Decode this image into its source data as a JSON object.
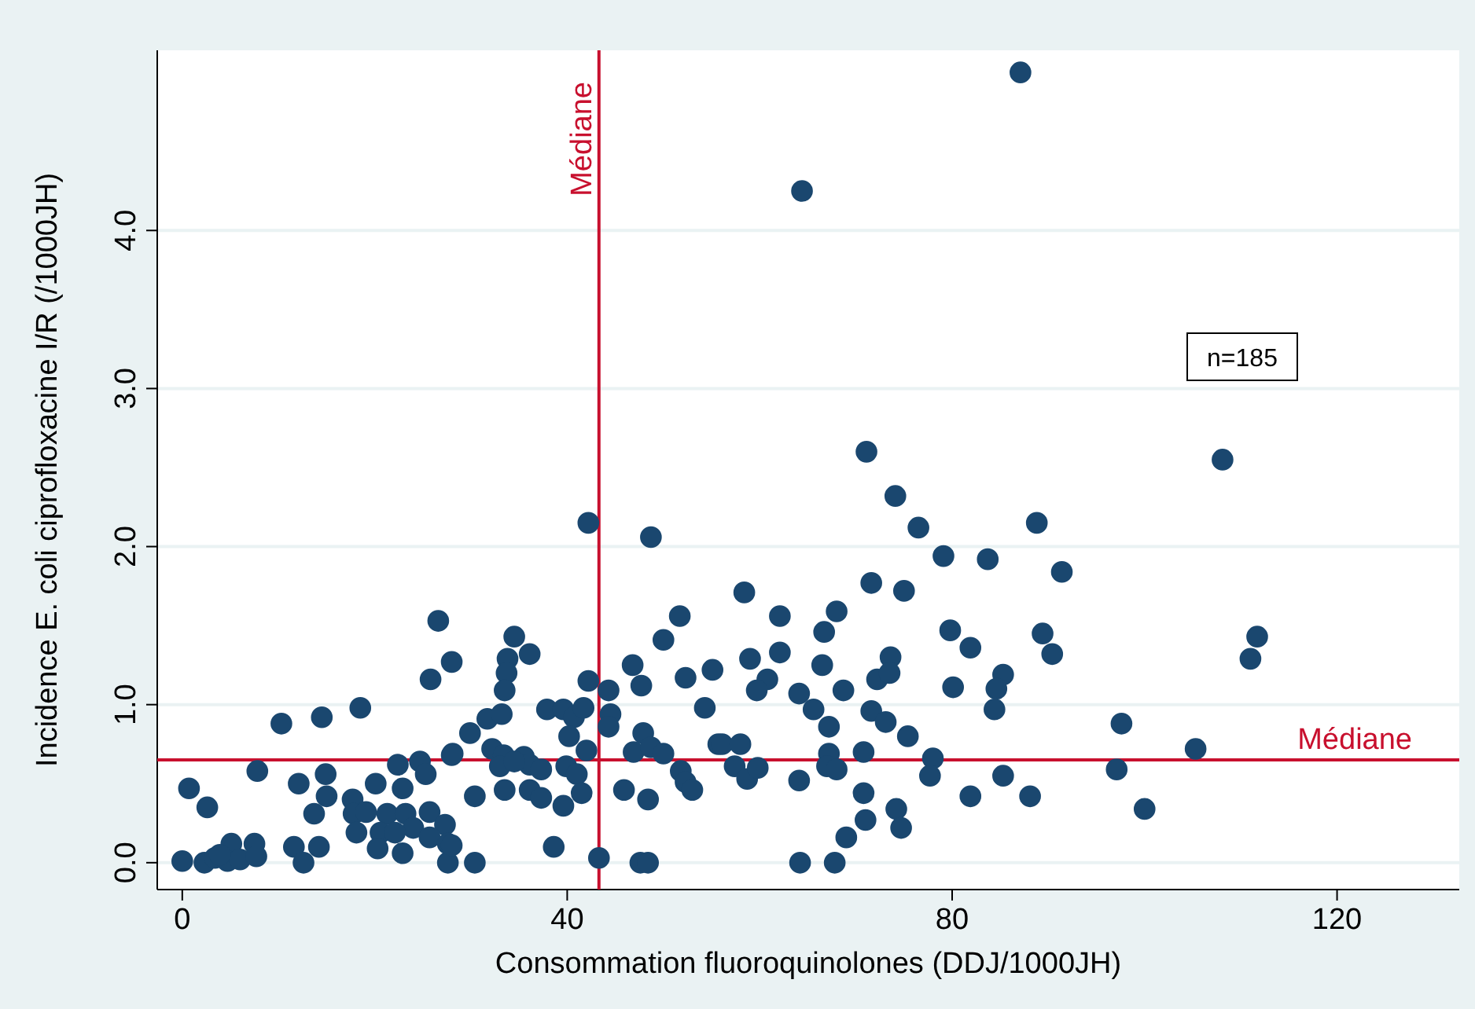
{
  "chart_data": {
    "type": "scatter",
    "xlabel": "Consommation fluoroquinolones (DDJ/1000JH)",
    "ylabel": "Incidence E. coli ciprofloxacine I/R (/1000JH)",
    "xlim": [
      -2.6,
      132.7
    ],
    "ylim": [
      -0.17,
      5.14
    ],
    "xticks": [
      0,
      40,
      80,
      120
    ],
    "yticks": [
      {
        "value": 0,
        "label": "0.0"
      },
      {
        "value": 1,
        "label": "1.0"
      },
      {
        "value": 2,
        "label": "2.0"
      },
      {
        "value": 3,
        "label": "3.0"
      },
      {
        "value": 4,
        "label": "4.0"
      }
    ],
    "grid": "y",
    "marker": "circle",
    "ref_lines": [
      {
        "axis": "x",
        "value": 43.3,
        "label": "Médiane",
        "color": "#c8102e"
      },
      {
        "axis": "y",
        "value": 0.65,
        "label": "Médiane",
        "color": "#c8102e"
      }
    ],
    "annotations": [
      "n=185"
    ],
    "series": [
      {
        "color": "#1a476f",
        "x": [
          26.6,
          28.0,
          25.8,
          18.5,
          14.5,
          10.3,
          7.8,
          0.7,
          2.6,
          12.1,
          14.9,
          15.0,
          13.7,
          17.7,
          17.8,
          19.1,
          21.3,
          20.1,
          22.9,
          22.4,
          24.7,
          25.3,
          28.0,
          23.2,
          25.7,
          24.0,
          27.3,
          18.1,
          20.6,
          22.1,
          25.7,
          20.3,
          22.9,
          27.6,
          27.6,
          11.6,
          14.2,
          12.6,
          0,
          2.3,
          3.4,
          5.1,
          7.5,
          4.7,
          6.0,
          7.7,
          3.9,
          42.2,
          48.7,
          34.5,
          33.8,
          36.1,
          33.7,
          33.5,
          51.7,
          50.0,
          46.8,
          47.7,
          52.3,
          55.1,
          42.2,
          44.3,
          54.3,
          44.5,
          44.3,
          31.7,
          33.2,
          29.9,
          37.9,
          39.6,
          40.7,
          41.7,
          40.2,
          42.0,
          32.2,
          33.4,
          35.5,
          36.1,
          33.0,
          34.5,
          37.3,
          28.1,
          39.9,
          41.0,
          46.9,
          47.9,
          48.7,
          50.0,
          51.8,
          52.3,
          53.0,
          55.7,
          30.4,
          33.5,
          36.1,
          37.3,
          39.6,
          41.5,
          45.9,
          48.4,
          28.0,
          38.6,
          30.4,
          43.3,
          47.6,
          48.4,
          71.1,
          74.1,
          76.5,
          79.1,
          71.6,
          75.0,
          58.4,
          62.1,
          68.0,
          66.7,
          79.8,
          81.9,
          59.0,
          62.1,
          66.5,
          73.6,
          60.8,
          59.7,
          64.1,
          68.7,
          72.2,
          73.5,
          80.1,
          65.6,
          71.6,
          73.1,
          67.2,
          75.4,
          56.1,
          58.0,
          57.4,
          58.7,
          59.8,
          67.2,
          67.0,
          68.0,
          70.8,
          64.1,
          78.0,
          77.7,
          81.9,
          70.8,
          71.0,
          69.0,
          74.2,
          74.7,
          64.2,
          67.8,
          108.1,
          88.8,
          83.7,
          91.4,
          89.4,
          90.4,
          111.7,
          111.0,
          85.3,
          84.6,
          84.4,
          97.6,
          105.3,
          85.3,
          97.1,
          88.1,
          100.0,
          87.1,
          64.4
        ],
        "values": [
          1.53,
          1.27,
          1.16,
          0.98,
          0.92,
          0.88,
          0.58,
          0.47,
          0.35,
          0.5,
          0.56,
          0.42,
          0.31,
          0.4,
          0.31,
          0.32,
          0.31,
          0.5,
          0.47,
          0.62,
          0.64,
          0.56,
          0.68,
          0.31,
          0.32,
          0.22,
          0.24,
          0.19,
          0.19,
          0.19,
          0.16,
          0.09,
          0.06,
          0.12,
          0.0,
          0.1,
          0.1,
          0.0,
          0.01,
          0.0,
          0.03,
          0.12,
          0.12,
          0.01,
          0.02,
          0.04,
          0.05,
          2.15,
          2.06,
          1.43,
          1.29,
          1.32,
          1.2,
          1.09,
          1.56,
          1.41,
          1.25,
          1.12,
          1.17,
          1.22,
          1.15,
          1.09,
          0.98,
          0.94,
          0.86,
          0.91,
          0.94,
          0.82,
          0.97,
          0.97,
          0.92,
          0.98,
          0.8,
          0.71,
          0.72,
          0.68,
          0.67,
          0.62,
          0.61,
          0.64,
          0.59,
          0.69,
          0.61,
          0.56,
          0.7,
          0.82,
          0.73,
          0.69,
          0.58,
          0.51,
          0.46,
          0.75,
          0.42,
          0.46,
          0.46,
          0.41,
          0.36,
          0.44,
          0.46,
          0.4,
          0.11,
          0.1,
          0.0,
          0.03,
          0.0,
          0.0,
          2.6,
          2.32,
          2.12,
          1.94,
          1.77,
          1.72,
          1.71,
          1.56,
          1.59,
          1.46,
          1.47,
          1.36,
          1.29,
          1.33,
          1.25,
          1.3,
          1.16,
          1.09,
          1.07,
          1.09,
          1.16,
          1.2,
          1.11,
          0.97,
          0.96,
          0.89,
          0.86,
          0.8,
          0.75,
          0.75,
          0.61,
          0.53,
          0.6,
          0.69,
          0.61,
          0.59,
          0.7,
          0.52,
          0.66,
          0.55,
          0.42,
          0.44,
          0.27,
          0.16,
          0.34,
          0.22,
          0.0,
          0.0,
          2.55,
          2.15,
          1.92,
          1.84,
          1.45,
          1.32,
          1.43,
          1.29,
          1.19,
          1.1,
          0.97,
          0.88,
          0.72,
          0.55,
          0.59,
          0.42,
          0.34,
          5.0,
          4.25
        ]
      }
    ]
  }
}
